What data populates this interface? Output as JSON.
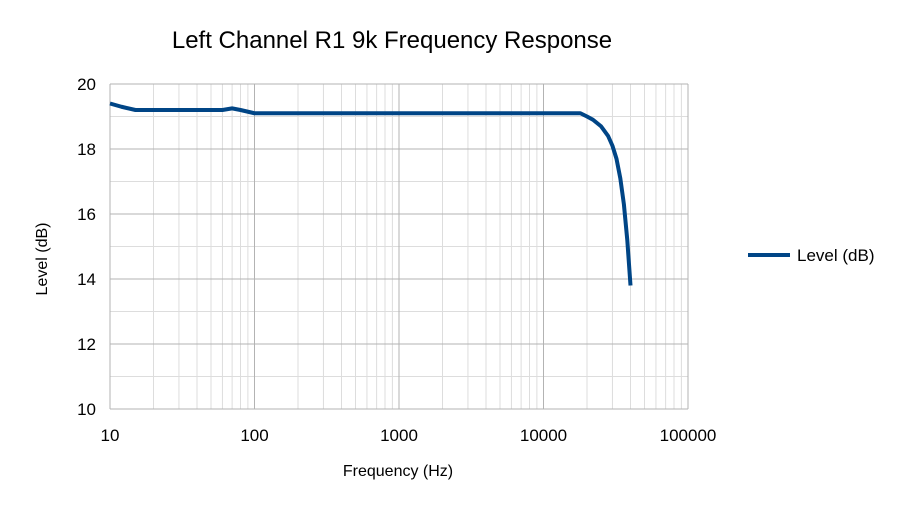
{
  "chart_data": {
    "type": "line",
    "title": "Left Channel R1 9k Frequency Response",
    "xlabel": "Frequency (Hz)",
    "ylabel": "Level (dB)",
    "xscale": "log",
    "xlim": [
      10,
      100000
    ],
    "ylim": [
      10,
      20
    ],
    "xticks": [
      10,
      100,
      1000,
      10000,
      100000
    ],
    "xtick_labels": [
      "10",
      "100",
      "1000",
      "10000",
      "100000"
    ],
    "yticks": [
      10,
      12,
      14,
      16,
      18,
      20
    ],
    "ytick_labels": [
      "10",
      "12",
      "14",
      "16",
      "18",
      "20"
    ],
    "grid": true,
    "legend_position": "right",
    "series": [
      {
        "name": "Level (dB)",
        "color": "#004586",
        "x": [
          10,
          12,
          15,
          20,
          30,
          40,
          60,
          70,
          80,
          100,
          200,
          500,
          1000,
          2000,
          5000,
          10000,
          15000,
          18000,
          20000,
          22000,
          25000,
          28000,
          30000,
          32000,
          34000,
          36000,
          38000,
          40000
        ],
        "y": [
          19.4,
          19.3,
          19.2,
          19.2,
          19.2,
          19.2,
          19.2,
          19.25,
          19.2,
          19.1,
          19.1,
          19.1,
          19.1,
          19.1,
          19.1,
          19.1,
          19.1,
          19.1,
          19.0,
          18.9,
          18.7,
          18.4,
          18.1,
          17.7,
          17.1,
          16.3,
          15.2,
          13.8
        ]
      }
    ]
  }
}
